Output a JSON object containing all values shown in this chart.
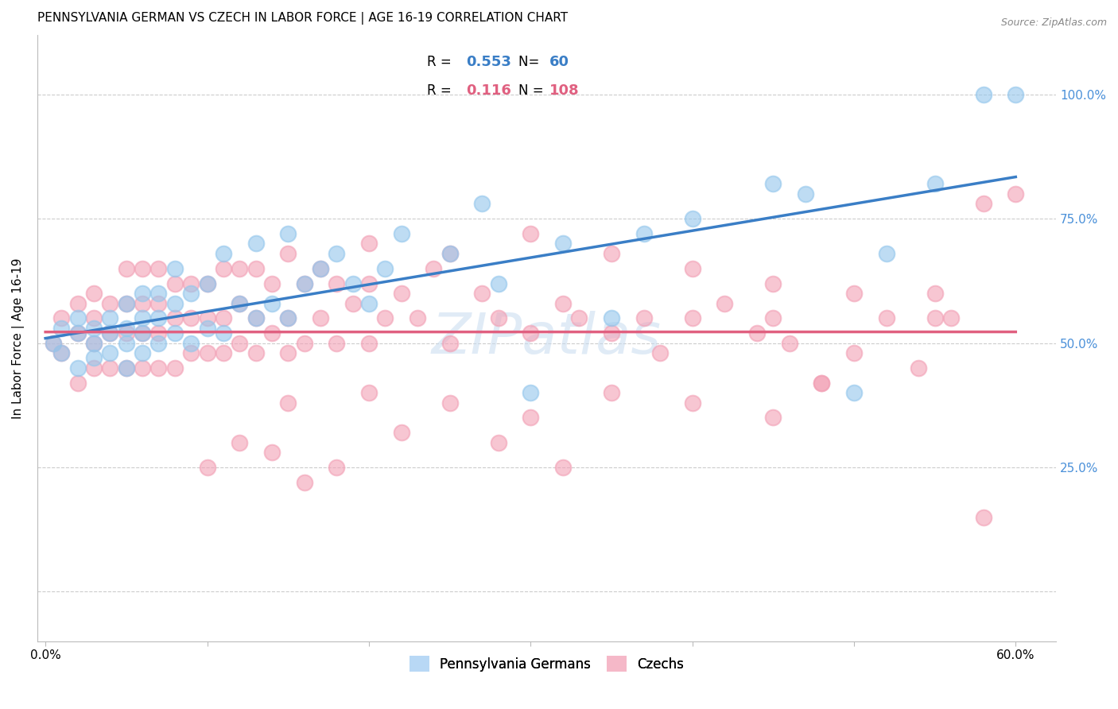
{
  "title": "PENNSYLVANIA GERMAN VS CZECH IN LABOR FORCE | AGE 16-19 CORRELATION CHART",
  "source": "Source: ZipAtlas.com",
  "ylabel": "In Labor Force | Age 16-19",
  "xlim": [
    -0.005,
    0.625
  ],
  "ylim": [
    -0.1,
    1.12
  ],
  "yticks": [
    0.0,
    0.25,
    0.5,
    0.75,
    1.0
  ],
  "ytick_labels_right": [
    "",
    "25.0%",
    "50.0%",
    "75.0%",
    "100.0%"
  ],
  "xticks": [
    0.0,
    0.1,
    0.2,
    0.3,
    0.4,
    0.5,
    0.6
  ],
  "xtick_labels": [
    "0.0%",
    "",
    "",
    "",
    "",
    "",
    "60.0%"
  ],
  "blue_R": 0.553,
  "blue_N": 60,
  "pink_R": 0.116,
  "pink_N": 108,
  "blue_color": "#93C6EC",
  "pink_color": "#F2A0B5",
  "blue_line_color": "#3A7EC6",
  "pink_line_color": "#E06080",
  "right_axis_color": "#4A90D9",
  "legend_blue_color": "#B8D8F5",
  "legend_pink_color": "#F5B8C8",
  "watermark_color": "#C8DCF0",
  "blue_scatter_x": [
    0.005,
    0.01,
    0.01,
    0.02,
    0.02,
    0.02,
    0.03,
    0.03,
    0.03,
    0.04,
    0.04,
    0.04,
    0.05,
    0.05,
    0.05,
    0.05,
    0.06,
    0.06,
    0.06,
    0.06,
    0.07,
    0.07,
    0.07,
    0.08,
    0.08,
    0.08,
    0.09,
    0.09,
    0.1,
    0.1,
    0.11,
    0.11,
    0.12,
    0.13,
    0.13,
    0.14,
    0.15,
    0.15,
    0.16,
    0.17,
    0.18,
    0.19,
    0.2,
    0.21,
    0.22,
    0.25,
    0.27,
    0.28,
    0.3,
    0.32,
    0.35,
    0.37,
    0.4,
    0.45,
    0.47,
    0.5,
    0.52,
    0.55,
    0.58,
    0.6
  ],
  "blue_scatter_y": [
    0.5,
    0.48,
    0.53,
    0.45,
    0.52,
    0.55,
    0.47,
    0.5,
    0.53,
    0.48,
    0.52,
    0.55,
    0.45,
    0.5,
    0.53,
    0.58,
    0.48,
    0.52,
    0.55,
    0.6,
    0.5,
    0.55,
    0.6,
    0.52,
    0.58,
    0.65,
    0.5,
    0.6,
    0.53,
    0.62,
    0.52,
    0.68,
    0.58,
    0.55,
    0.7,
    0.58,
    0.55,
    0.72,
    0.62,
    0.65,
    0.68,
    0.62,
    0.58,
    0.65,
    0.72,
    0.68,
    0.78,
    0.62,
    0.4,
    0.7,
    0.55,
    0.72,
    0.75,
    0.82,
    0.8,
    0.4,
    0.68,
    0.82,
    1.0,
    1.0
  ],
  "pink_scatter_x": [
    0.005,
    0.01,
    0.01,
    0.02,
    0.02,
    0.02,
    0.03,
    0.03,
    0.03,
    0.03,
    0.04,
    0.04,
    0.04,
    0.05,
    0.05,
    0.05,
    0.05,
    0.06,
    0.06,
    0.06,
    0.06,
    0.07,
    0.07,
    0.07,
    0.07,
    0.08,
    0.08,
    0.08,
    0.09,
    0.09,
    0.09,
    0.1,
    0.1,
    0.1,
    0.11,
    0.11,
    0.11,
    0.12,
    0.12,
    0.12,
    0.13,
    0.13,
    0.13,
    0.14,
    0.14,
    0.15,
    0.15,
    0.15,
    0.16,
    0.16,
    0.17,
    0.17,
    0.18,
    0.18,
    0.19,
    0.2,
    0.2,
    0.21,
    0.22,
    0.23,
    0.24,
    0.25,
    0.27,
    0.28,
    0.3,
    0.32,
    0.33,
    0.35,
    0.37,
    0.38,
    0.4,
    0.42,
    0.44,
    0.45,
    0.46,
    0.48,
    0.5,
    0.52,
    0.54,
    0.55,
    0.56,
    0.58,
    0.6,
    0.15,
    0.2,
    0.25,
    0.3,
    0.35,
    0.4,
    0.45,
    0.2,
    0.25,
    0.3,
    0.35,
    0.4,
    0.45,
    0.5,
    0.55,
    0.1,
    0.12,
    0.14,
    0.16,
    0.18,
    0.22,
    0.28,
    0.32,
    0.48,
    0.58
  ],
  "pink_scatter_y": [
    0.5,
    0.48,
    0.55,
    0.42,
    0.52,
    0.58,
    0.45,
    0.5,
    0.55,
    0.6,
    0.45,
    0.52,
    0.58,
    0.45,
    0.52,
    0.58,
    0.65,
    0.45,
    0.52,
    0.58,
    0.65,
    0.45,
    0.52,
    0.58,
    0.65,
    0.45,
    0.55,
    0.62,
    0.48,
    0.55,
    0.62,
    0.48,
    0.55,
    0.62,
    0.48,
    0.55,
    0.65,
    0.5,
    0.58,
    0.65,
    0.48,
    0.55,
    0.65,
    0.52,
    0.62,
    0.48,
    0.55,
    0.68,
    0.5,
    0.62,
    0.55,
    0.65,
    0.5,
    0.62,
    0.58,
    0.5,
    0.62,
    0.55,
    0.6,
    0.55,
    0.65,
    0.5,
    0.6,
    0.55,
    0.52,
    0.58,
    0.55,
    0.52,
    0.55,
    0.48,
    0.55,
    0.58,
    0.52,
    0.55,
    0.5,
    0.42,
    0.48,
    0.55,
    0.45,
    0.55,
    0.55,
    0.78,
    0.8,
    0.38,
    0.4,
    0.38,
    0.35,
    0.4,
    0.38,
    0.35,
    0.7,
    0.68,
    0.72,
    0.68,
    0.65,
    0.62,
    0.6,
    0.6,
    0.25,
    0.3,
    0.28,
    0.22,
    0.25,
    0.32,
    0.3,
    0.25,
    0.42,
    0.15
  ]
}
